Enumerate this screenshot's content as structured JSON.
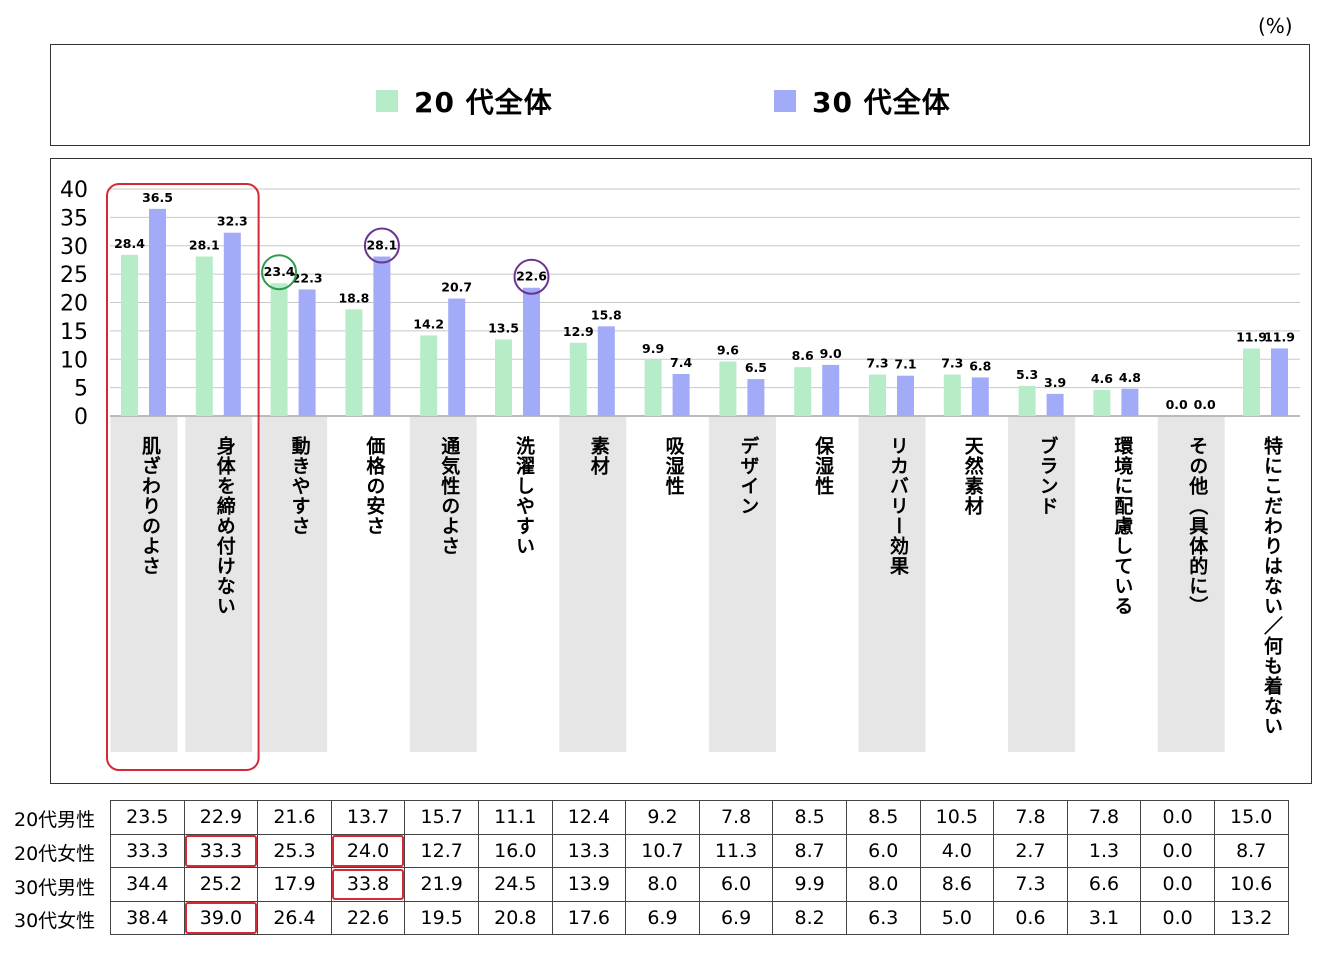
{
  "unit_label": "(%)",
  "legend": [
    {
      "label": "20 代全体",
      "color": "#b6ecc8"
    },
    {
      "label": "30 代全体",
      "color": "#a2abf7"
    }
  ],
  "chart_data": {
    "type": "bar",
    "title": "",
    "xlabel": "",
    "ylabel": "",
    "ylim": [
      0,
      40
    ],
    "yticks": [
      0,
      5,
      10,
      15,
      20,
      25,
      30,
      35,
      40
    ],
    "grid": true,
    "legend_position": "top",
    "categories": [
      "肌ざわりのよさ",
      "身体を締め付けない",
      "動きやすさ",
      "価格の安さ",
      "通気性のよさ",
      "洗濯しやすい",
      "素材",
      "吸湿性",
      "デザイン",
      "保湿性",
      "リカバリー効果",
      "天然素材",
      "ブランド",
      "環境に配慮している",
      "その他（具体的に）",
      "特にこだわりはない／何も着ない"
    ],
    "series": [
      {
        "name": "20 代全体",
        "color": "#b6ecc8",
        "values": [
          28.4,
          28.1,
          23.4,
          18.8,
          14.2,
          13.5,
          12.9,
          9.9,
          9.6,
          8.6,
          7.3,
          7.3,
          5.3,
          4.6,
          0.0,
          11.9
        ]
      },
      {
        "name": "30 代全体",
        "color": "#a2abf7",
        "values": [
          36.5,
          32.3,
          22.3,
          28.1,
          20.7,
          22.6,
          15.8,
          7.4,
          6.5,
          9.0,
          7.1,
          6.8,
          3.9,
          4.8,
          0.0,
          11.9
        ]
      }
    ],
    "shaded_categories": [
      0,
      1,
      2,
      4,
      6,
      8,
      10,
      12,
      14
    ],
    "highlight_box_categories": [
      0,
      1
    ],
    "circled_labels": [
      {
        "series": 0,
        "category": 2,
        "color": "#2e9a4c"
      },
      {
        "series": 1,
        "category": 3,
        "color": "#6b3391"
      },
      {
        "series": 1,
        "category": 5,
        "color": "#6b3391"
      }
    ]
  },
  "table": {
    "rows": [
      {
        "label": "20代男性",
        "values": [
          "23.5",
          "22.9",
          "21.6",
          "13.7",
          "15.7",
          "11.1",
          "12.4",
          "9.2",
          "7.8",
          "8.5",
          "8.5",
          "10.5",
          "7.8",
          "7.8",
          "0.0",
          "15.0"
        ]
      },
      {
        "label": "20代女性",
        "values": [
          "33.3",
          "33.3",
          "25.3",
          "24.0",
          "12.7",
          "16.0",
          "13.3",
          "10.7",
          "11.3",
          "8.7",
          "6.0",
          "4.0",
          "2.7",
          "1.3",
          "0.0",
          "8.7"
        ]
      },
      {
        "label": "30代男性",
        "values": [
          "34.4",
          "25.2",
          "17.9",
          "33.8",
          "21.9",
          "24.5",
          "13.9",
          "8.0",
          "6.0",
          "9.9",
          "8.0",
          "8.6",
          "7.3",
          "6.6",
          "0.0",
          "10.6"
        ]
      },
      {
        "label": "30代女性",
        "values": [
          "38.4",
          "39.0",
          "26.4",
          "22.6",
          "19.5",
          "20.8",
          "17.6",
          "6.9",
          "6.9",
          "8.2",
          "6.3",
          "5.0",
          "0.6",
          "3.1",
          "0.0",
          "13.2"
        ]
      }
    ],
    "highlighted_cells": [
      [
        1,
        1
      ],
      [
        1,
        3
      ],
      [
        2,
        3
      ],
      [
        3,
        1
      ]
    ],
    "highlight_color": "#d42a35"
  }
}
